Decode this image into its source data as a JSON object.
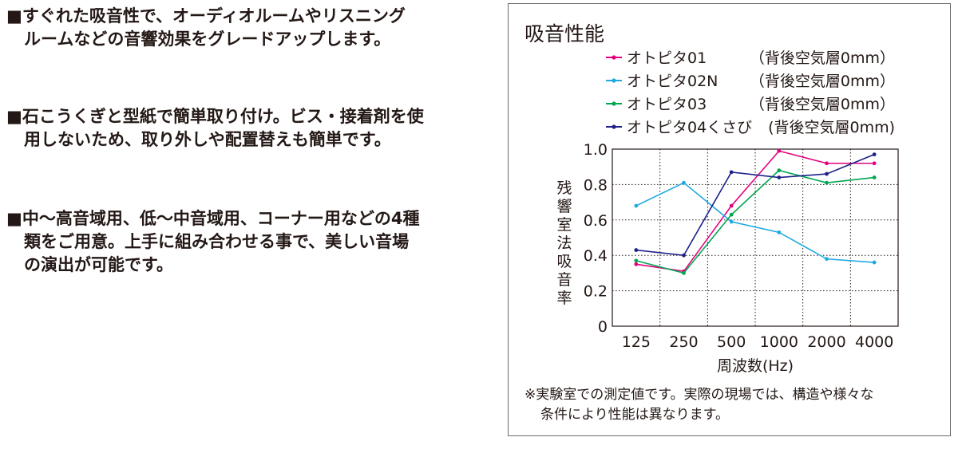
{
  "features": [
    {
      "lines": [
        "■すぐれた吸音性で、オーディオルームやリスニング",
        "ルームなどの音響効果をグレードアップします。"
      ]
    },
    {
      "lines": [
        "■石こうくぎと型紙で簡単取り付け。ビス・接着剤を使",
        "用しないため、取り外しや配置替えも簡単です。"
      ]
    },
    {
      "lines": [
        "■中～高音域用、低～中音域用、コーナー用などの4種",
        "類をご用意。上手に組み合わせる事で、美しい音場",
        "の演出が可能です。"
      ]
    }
  ],
  "note": [
    "※実験室での測定値です。実際の現場では、構造や様々な",
    "条件により性能は異なります。"
  ],
  "chart_data": {
    "type": "line",
    "title": "吸音性能",
    "xlabel": "周波数(Hz)",
    "ylabel": "残響室法吸音率",
    "categories": [
      "125",
      "250",
      "500",
      "1000",
      "2000",
      "4000"
    ],
    "ylim": [
      0,
      1.0
    ],
    "yticks": [
      "0",
      "0.2",
      "0.4",
      "0.6",
      "0.8",
      "1.0"
    ],
    "grid": "dotted",
    "legend_position": "top-right",
    "series": [
      {
        "name": "オトピタ01",
        "condition": "（背後空気層0mm）",
        "color": "#e4007f",
        "values": [
          0.35,
          0.31,
          0.68,
          0.99,
          0.92,
          0.92
        ]
      },
      {
        "name": "オトピタ02N",
        "condition": "（背後空気層0mm）",
        "color": "#1fa9e1",
        "values": [
          0.68,
          0.81,
          0.59,
          0.53,
          0.38,
          0.36
        ]
      },
      {
        "name": "オトピタ03",
        "condition": "（背後空気層0mm）",
        "color": "#00a650",
        "values": [
          0.37,
          0.3,
          0.63,
          0.88,
          0.81,
          0.84
        ]
      },
      {
        "name": "オトピタ04くさび",
        "condition": "(背後空気層0mm)",
        "color": "#1d2088",
        "values": [
          0.43,
          0.4,
          0.87,
          0.84,
          0.86,
          0.97
        ]
      }
    ]
  }
}
